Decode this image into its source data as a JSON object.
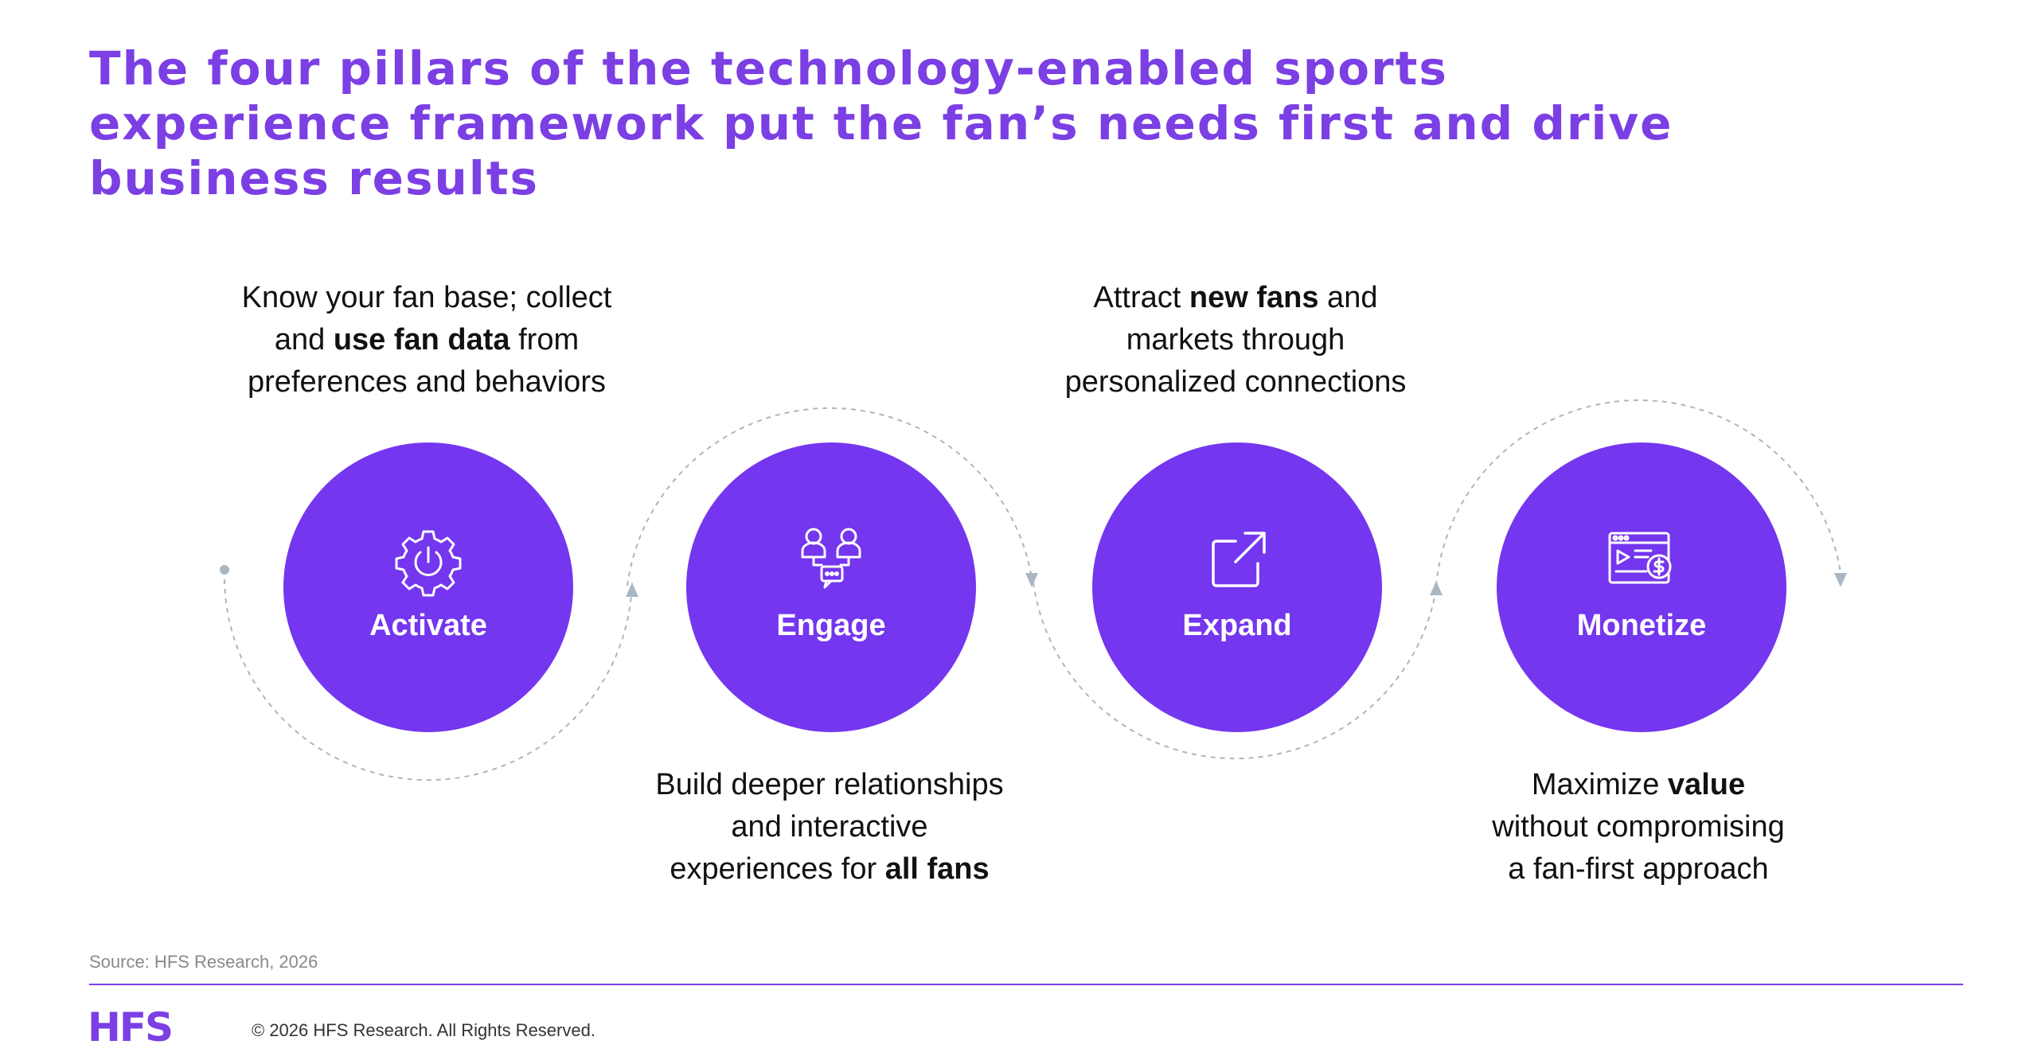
{
  "title_lines": [
    "The four pillars of the technology-enabled sports",
    "experience framework put the fan’s needs first and drive",
    "business results"
  ],
  "pillars": [
    {
      "label": "Activate",
      "icon": "gear-power-icon",
      "description": [
        [
          {
            "t": "Know your fan base; collect",
            "b": false
          }
        ],
        [
          {
            "t": "and ",
            "b": false
          },
          {
            "t": "use fan data",
            "b": true
          },
          {
            "t": " from",
            "b": false
          }
        ],
        [
          {
            "t": "preferences and behaviors",
            "b": false
          }
        ]
      ]
    },
    {
      "label": "Engage",
      "icon": "people-chat-icon",
      "description": [
        [
          {
            "t": "Build deeper relationships",
            "b": false
          }
        ],
        [
          {
            "t": "and interactive",
            "b": false
          }
        ],
        [
          {
            "t": "experiences for ",
            "b": false
          },
          {
            "t": "all fans",
            "b": true
          }
        ]
      ]
    },
    {
      "label": "Expand",
      "icon": "external-link-icon",
      "description": [
        [
          {
            "t": "Attract ",
            "b": false
          },
          {
            "t": "new fans",
            "b": true
          },
          {
            "t": " and",
            "b": false
          }
        ],
        [
          {
            "t": "markets through",
            "b": false
          }
        ],
        [
          {
            "t": "personalized connections",
            "b": false
          }
        ]
      ]
    },
    {
      "label": "Monetize",
      "icon": "video-dollar-icon",
      "description": [
        [
          {
            "t": "Maximize ",
            "b": false
          },
          {
            "t": "value",
            "b": true
          }
        ],
        [
          {
            "t": "without compromising",
            "b": false
          }
        ],
        [
          {
            "t": "a fan-first approach",
            "b": false
          }
        ]
      ]
    }
  ],
  "footer": {
    "source": "Source: HFS Research, 2026",
    "logo": "HFS",
    "copyright": "© 2026 HFS Research. All Rights Reserved."
  },
  "colors": {
    "accent": "#7b3fe4",
    "circle": "#7436ef",
    "flow_line": "#a9b7c3"
  }
}
